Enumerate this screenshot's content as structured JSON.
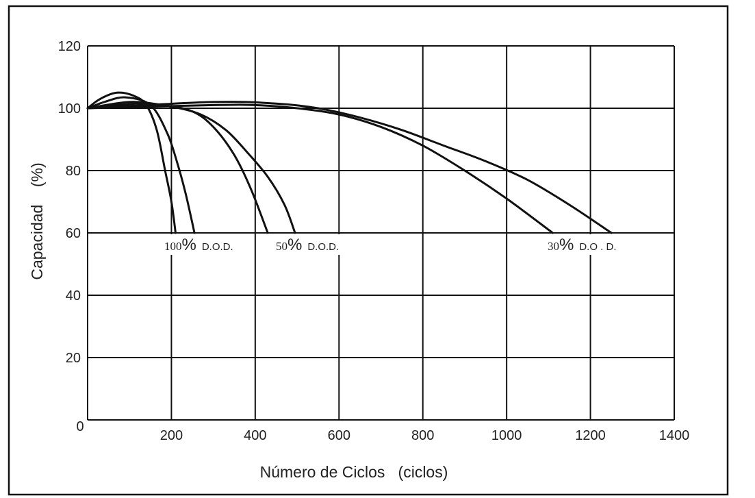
{
  "chart_data": {
    "type": "line",
    "xlabel": "Número de Ciclos   (ciclos)",
    "ylabel": "Capacidad    (%)",
    "xlim": [
      0,
      1400
    ],
    "ylim": [
      0,
      120
    ],
    "x_ticks": [
      "200",
      "400",
      "600",
      "800",
      "1000",
      "1200",
      "1400"
    ],
    "y_ticks": [
      "0",
      "20",
      "40",
      "60",
      "80",
      "100",
      "120"
    ],
    "grid": true,
    "series": [
      {
        "group": "100% D.O.D.",
        "points": [
          [
            0,
            100
          ],
          [
            30,
            103
          ],
          [
            70,
            105
          ],
          [
            110,
            104
          ],
          [
            140,
            101
          ],
          [
            165,
            93
          ],
          [
            185,
            80
          ],
          [
            200,
            70
          ],
          [
            210,
            60
          ]
        ]
      },
      {
        "group": "100% D.O.D.",
        "points": [
          [
            0,
            100
          ],
          [
            40,
            102
          ],
          [
            90,
            103.5
          ],
          [
            150,
            101
          ],
          [
            190,
            92
          ],
          [
            215,
            82
          ],
          [
            235,
            72
          ],
          [
            255,
            60
          ]
        ]
      },
      {
        "group": "50% D.O.D.",
        "points": [
          [
            0,
            100
          ],
          [
            100,
            102
          ],
          [
            180,
            101
          ],
          [
            250,
            99
          ],
          [
            300,
            94
          ],
          [
            350,
            85
          ],
          [
            390,
            74
          ],
          [
            430,
            60
          ]
        ]
      },
      {
        "group": "50% D.O.D.",
        "points": [
          [
            0,
            100
          ],
          [
            120,
            101.5
          ],
          [
            200,
            100.5
          ],
          [
            270,
            98
          ],
          [
            330,
            93
          ],
          [
            380,
            86
          ],
          [
            430,
            78
          ],
          [
            470,
            69
          ],
          [
            495,
            60
          ]
        ]
      },
      {
        "group": "30% D.O.D.",
        "points": [
          [
            0,
            100
          ],
          [
            300,
            101
          ],
          [
            400,
            101
          ],
          [
            500,
            100
          ],
          [
            600,
            98
          ],
          [
            700,
            94
          ],
          [
            800,
            88
          ],
          [
            900,
            80
          ],
          [
            1000,
            71
          ],
          [
            1110,
            60
          ]
        ]
      },
      {
        "group": "30% D.O.D.",
        "points": [
          [
            0,
            100
          ],
          [
            300,
            102
          ],
          [
            450,
            101.5
          ],
          [
            550,
            100
          ],
          [
            650,
            97
          ],
          [
            750,
            93
          ],
          [
            850,
            88
          ],
          [
            950,
            83
          ],
          [
            1050,
            77
          ],
          [
            1150,
            69
          ],
          [
            1250,
            60
          ]
        ]
      }
    ],
    "annotations": [
      {
        "num": "100",
        "pct": "%",
        "dod": "D.O.D."
      },
      {
        "num": "50",
        "pct": "%",
        "dod": "D.O.D."
      },
      {
        "num": "30",
        "pct": "%",
        "dod": "D.O . D."
      }
    ]
  }
}
